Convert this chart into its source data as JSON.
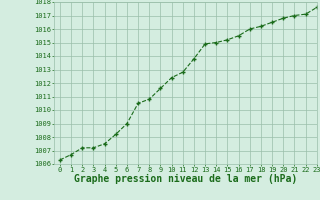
{
  "x": [
    0,
    1,
    2,
    3,
    4,
    5,
    6,
    7,
    8,
    9,
    10,
    11,
    12,
    13,
    14,
    15,
    16,
    17,
    18,
    19,
    20,
    21,
    22,
    23
  ],
  "y": [
    1006.3,
    1006.7,
    1007.2,
    1007.2,
    1007.5,
    1008.2,
    1009.0,
    1010.5,
    1010.8,
    1011.6,
    1012.4,
    1012.8,
    1013.8,
    1014.9,
    1015.0,
    1015.2,
    1015.5,
    1016.0,
    1016.2,
    1016.5,
    1016.8,
    1017.0,
    1017.1,
    1017.6
  ],
  "ylim": [
    1006,
    1018
  ],
  "xlim": [
    -0.5,
    23
  ],
  "yticks": [
    1006,
    1007,
    1008,
    1009,
    1010,
    1011,
    1012,
    1013,
    1014,
    1015,
    1016,
    1017,
    1018
  ],
  "xticks": [
    0,
    1,
    2,
    3,
    4,
    5,
    6,
    7,
    8,
    9,
    10,
    11,
    12,
    13,
    14,
    15,
    16,
    17,
    18,
    19,
    20,
    21,
    22,
    23
  ],
  "line_color": "#1a6b1a",
  "marker": "+",
  "marker_size": 3.5,
  "line_width": 0.8,
  "bg_color": "#d4ede0",
  "grid_color": "#9abfaa",
  "xlabel": "Graphe pression niveau de la mer (hPa)",
  "xlabel_color": "#1a6b1a",
  "tick_color": "#1a6b1a",
  "tick_fontsize": 5.0,
  "xlabel_fontsize": 7.0,
  "line_style": "--"
}
